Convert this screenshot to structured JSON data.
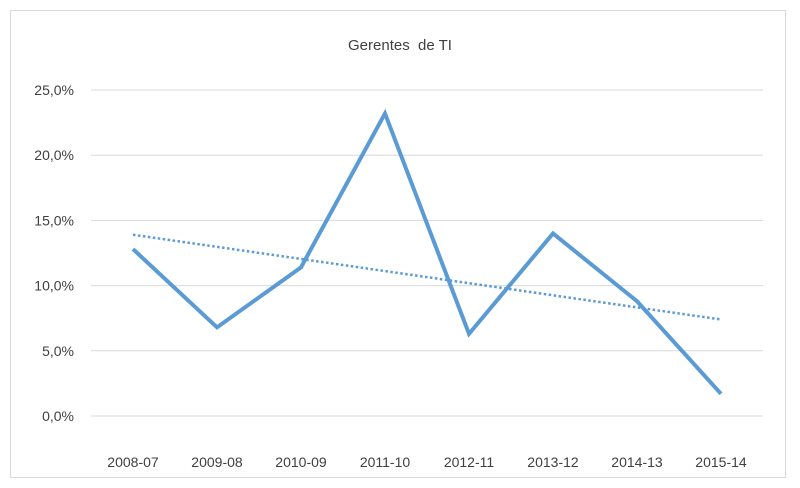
{
  "chart_data": {
    "type": "line",
    "title": "Gerentes  de TI",
    "categories": [
      "2008-07",
      "2009-08",
      "2010-09",
      "2011-10",
      "2012-11",
      "2013-12",
      "2014-13",
      "2015-14"
    ],
    "series": [
      {
        "values": [
          12.8,
          6.8,
          11.4,
          23.2,
          6.3,
          14.0,
          8.8,
          1.7
        ],
        "color": "#5b9bd5",
        "style": "solid"
      }
    ],
    "trendline": {
      "type": "linear",
      "start": 13.9,
      "end": 7.4,
      "color": "#5b9bd5",
      "style": "dotted"
    },
    "y_ticks": [
      "0,0%",
      "5,0%",
      "10,0%",
      "15,0%",
      "20,0%",
      "25,0%"
    ],
    "ylim": [
      0,
      25
    ],
    "grid": true,
    "legend": "none",
    "gridline_color": "#d9d9d9"
  }
}
